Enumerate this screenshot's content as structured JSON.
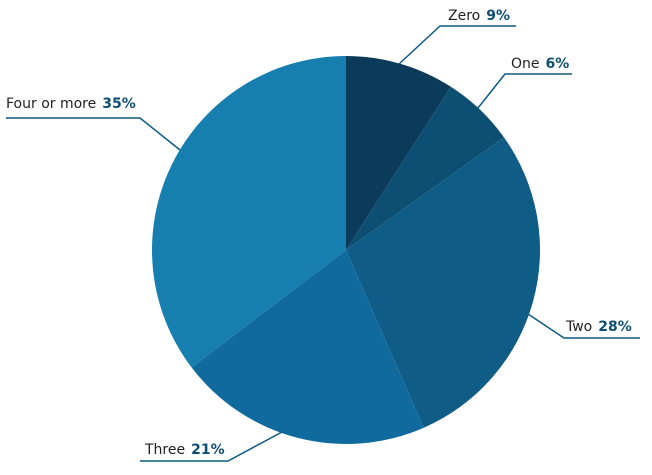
{
  "chart_data": {
    "type": "pie",
    "categories": [
      "Zero",
      "One",
      "Two",
      "Three",
      "Four or more"
    ],
    "values": [
      9,
      6,
      28,
      21,
      35
    ],
    "value_labels": [
      "9%",
      "6%",
      "28%",
      "21%",
      "35%"
    ],
    "colors": [
      "#0b3a5a",
      "#0d4f73",
      "#0f5c86",
      "#106a9e",
      "#167fb0"
    ]
  }
}
